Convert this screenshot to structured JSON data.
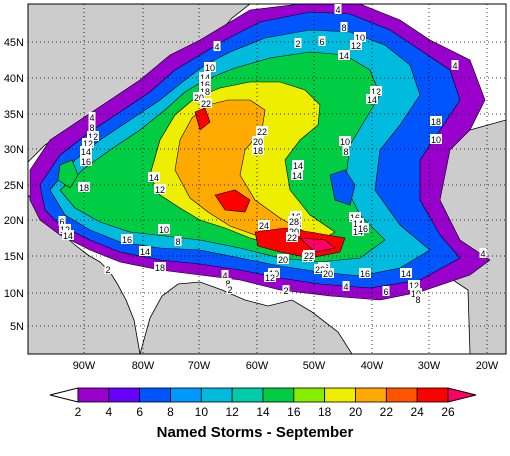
{
  "title": "Named Storms - September",
  "lat_labels": [
    "5N",
    "10N",
    "15N",
    "20N",
    "25N",
    "30N",
    "35N",
    "40N",
    "45N"
  ],
  "lon_labels": [
    "90W",
    "80W",
    "70W",
    "60W",
    "50W",
    "40W",
    "30W",
    "20W"
  ],
  "colorbar": {
    "ticks": [
      "2",
      "4",
      "6",
      "8",
      "10",
      "12",
      "14",
      "16",
      "18",
      "20",
      "22",
      "24",
      "26"
    ],
    "colors": [
      "#ffffff",
      "#9900cc",
      "#6600ff",
      "#0055ff",
      "#0099ff",
      "#00bbdd",
      "#00ccaa",
      "#00cc44",
      "#88ee00",
      "#eeee00",
      "#ffaa00",
      "#ff5500",
      "#ff0000",
      "#ff0066"
    ]
  },
  "contour_labels": [
    "4",
    "8",
    "6",
    "2",
    "10",
    "12",
    "4",
    "14",
    "4",
    "10",
    "14",
    "16",
    "18",
    "20",
    "22",
    "22",
    "20",
    "18",
    "4",
    "8",
    "12",
    "12",
    "14",
    "16",
    "18",
    "14",
    "12",
    "14",
    "10",
    "8",
    "12",
    "14",
    "16",
    "14",
    "16",
    "18",
    "20",
    "22",
    "24",
    "26",
    "28",
    "22",
    "26",
    "20",
    "22",
    "20",
    "18",
    "10",
    "10",
    "8",
    "6",
    "12",
    "14",
    "16",
    "14",
    "18",
    "16",
    "14",
    "12",
    "10",
    "8",
    "6",
    "4",
    "2",
    "2",
    "4",
    "8",
    "10",
    "12",
    "14",
    "14",
    "16",
    "2",
    "2",
    "4"
  ],
  "land_color": "#cccccc",
  "ocean_color": "#ffffff"
}
